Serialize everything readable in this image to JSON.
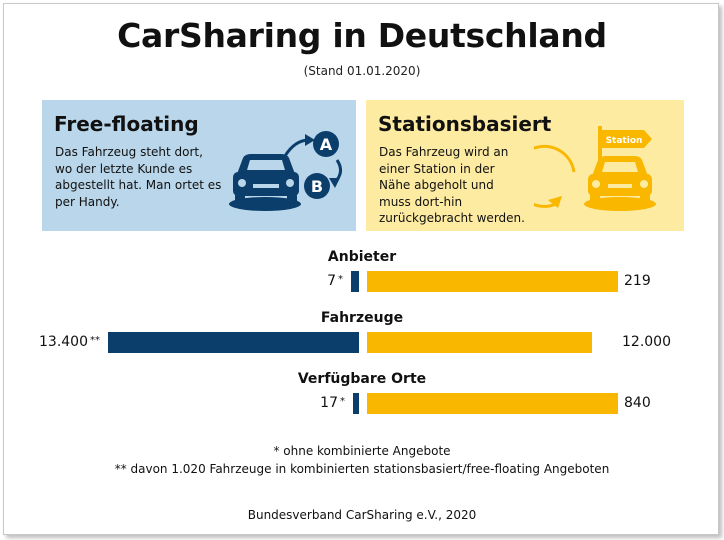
{
  "title": "CarSharing in Deutschland",
  "subtitle": "(Stand 01.01.2020)",
  "panels": {
    "left": {
      "title": "Free-floating",
      "description": "Das Fahrzeug steht dort, wo der letzte Kunde es abgestellt hat. Man ortet es per Handy.",
      "marker_a": "A",
      "marker_b": "B"
    },
    "right": {
      "title": "Stationsbasiert",
      "description": "Das Fahrzeug wird an einer Station in der Nähe abgeholt und muss dort-hin zurückgebracht werden.",
      "sign_label": "Station"
    }
  },
  "colors": {
    "free_floating": "#0b3e6b",
    "stationsbasiert": "#fab700",
    "left_panel_bg": "#b9d6ea",
    "right_panel_bg": "#fdeba2"
  },
  "chart_data": {
    "type": "bar",
    "orientation": "diverging-horizontal",
    "categories": [
      "Anbieter",
      "Fahrzeuge",
      "Verfügbare Orte"
    ],
    "series": [
      {
        "values": [
          7,
          13400,
          17
        ],
        "labels": [
          "7",
          "13.400",
          "17"
        ],
        "footnote_marks": [
          "*",
          "**",
          "*"
        ],
        "color": "#0b3e6b"
      },
      {
        "values": [
          219,
          12000,
          840
        ],
        "labels": [
          "219",
          "12.000",
          "840"
        ],
        "color": "#fab700"
      }
    ],
    "footnotes": [
      "* ohne kombinierte Angebote",
      "** davon 1.020 Fahrzeuge in kombinierten stationsbasiert/free-floating Angeboten"
    ]
  },
  "source": "Bundesverband CarSharing e.V., 2020"
}
